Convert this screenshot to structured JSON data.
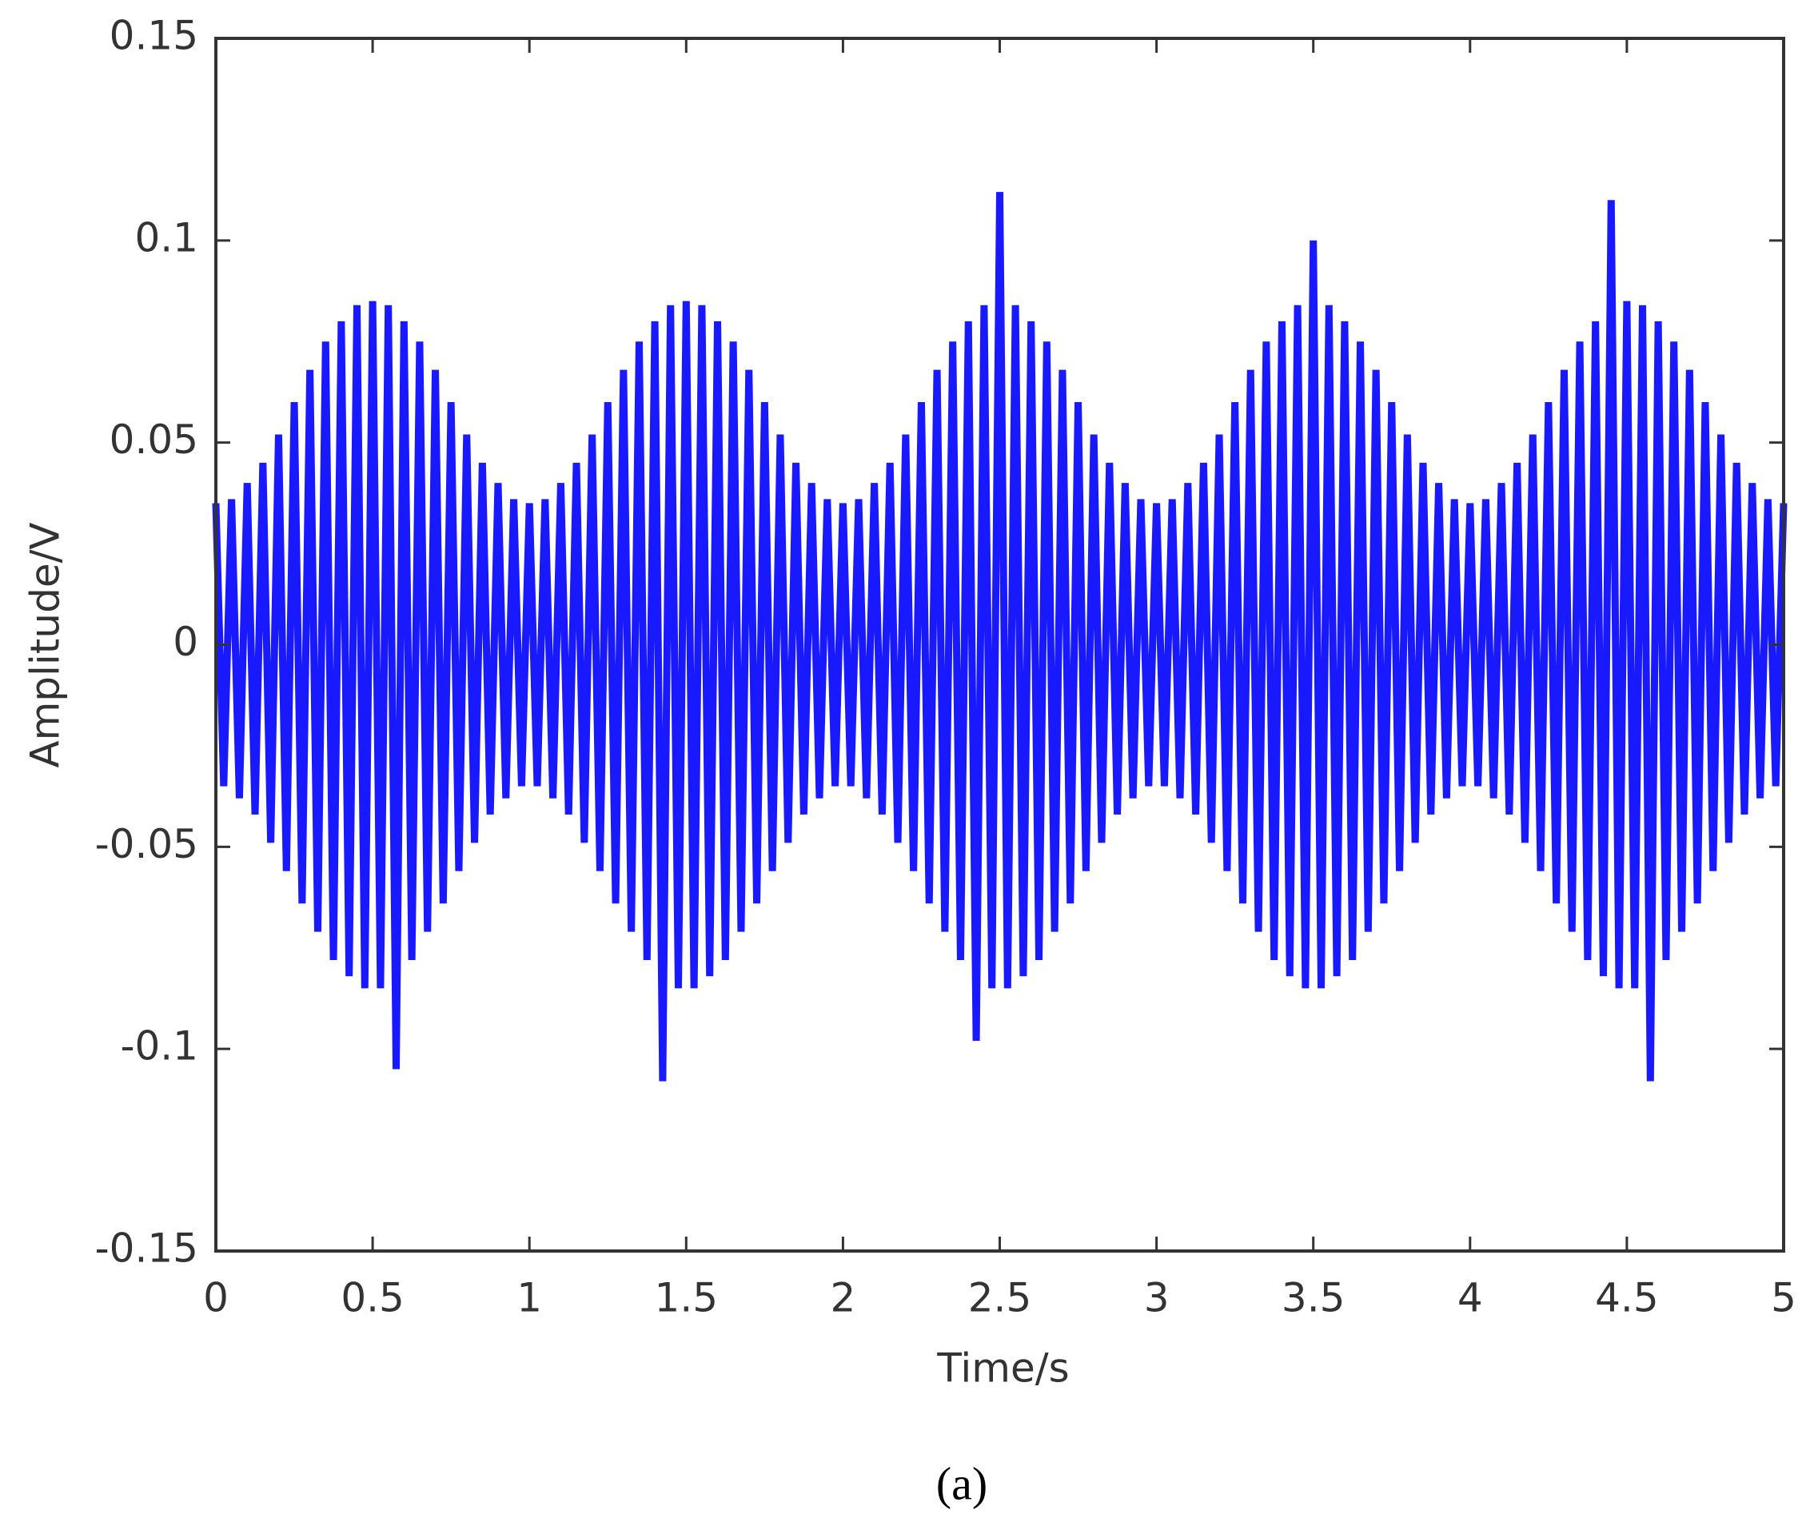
{
  "chart_data": {
    "type": "line",
    "xlabel": "Time/s",
    "ylabel": "Amplitude/V",
    "caption": "(a)",
    "xlim": [
      0,
      5
    ],
    "ylim": [
      -0.15,
      0.15
    ],
    "xticks": [
      0,
      0.5,
      1,
      1.5,
      2,
      2.5,
      3,
      3.5,
      4,
      4.5,
      5
    ],
    "yticks": [
      -0.15,
      -0.1,
      -0.05,
      0,
      0.05,
      0.1,
      0.15
    ],
    "grid": false,
    "x": [
      0,
      0.025,
      0.05,
      0.075,
      0.1,
      0.125,
      0.15,
      0.175,
      0.2,
      0.225,
      0.25,
      0.275,
      0.3,
      0.325,
      0.35,
      0.375,
      0.4,
      0.425,
      0.45,
      0.475,
      0.5,
      0.525,
      0.55,
      0.575,
      0.6,
      0.625,
      0.65,
      0.675,
      0.7,
      0.725,
      0.75,
      0.775,
      0.8,
      0.825,
      0.85,
      0.875,
      0.9,
      0.925,
      0.95,
      0.975,
      1,
      1.025,
      1.05,
      1.075,
      1.1,
      1.125,
      1.15,
      1.175,
      1.2,
      1.225,
      1.25,
      1.275,
      1.3,
      1.325,
      1.35,
      1.375,
      1.4,
      1.425,
      1.45,
      1.475,
      1.5,
      1.525,
      1.55,
      1.575,
      1.6,
      1.625,
      1.65,
      1.675,
      1.7,
      1.725,
      1.75,
      1.775,
      1.8,
      1.825,
      1.85,
      1.875,
      1.9,
      1.925,
      1.95,
      1.975,
      2,
      2.025,
      2.05,
      2.075,
      2.1,
      2.125,
      2.15,
      2.175,
      2.2,
      2.225,
      2.25,
      2.275,
      2.3,
      2.325,
      2.35,
      2.375,
      2.4,
      2.425,
      2.45,
      2.475,
      2.5,
      2.525,
      2.55,
      2.575,
      2.6,
      2.625,
      2.65,
      2.675,
      2.7,
      2.725,
      2.75,
      2.775,
      2.8,
      2.825,
      2.85,
      2.875,
      2.9,
      2.925,
      2.95,
      2.975,
      3,
      3.025,
      3.05,
      3.075,
      3.1,
      3.125,
      3.15,
      3.175,
      3.2,
      3.225,
      3.25,
      3.275,
      3.3,
      3.325,
      3.35,
      3.375,
      3.4,
      3.425,
      3.45,
      3.475,
      3.5,
      3.525,
      3.55,
      3.575,
      3.6,
      3.625,
      3.65,
      3.675,
      3.7,
      3.725,
      3.75,
      3.775,
      3.8,
      3.825,
      3.85,
      3.875,
      3.9,
      3.925,
      3.95,
      3.975,
      4,
      4.025,
      4.05,
      4.075,
      4.1,
      4.125,
      4.15,
      4.175,
      4.2,
      4.225,
      4.25,
      4.275,
      4.3,
      4.325,
      4.35,
      4.375,
      4.4,
      4.425,
      4.45,
      4.475,
      4.5,
      4.525,
      4.55,
      4.575,
      4.6,
      4.625,
      4.65,
      4.675,
      4.7,
      4.725,
      4.75,
      4.775,
      4.8,
      4.825,
      4.85,
      4.875,
      4.9,
      4.925,
      4.95,
      4.975,
      5
    ],
    "series": [
      {
        "color": "#0000ff",
        "values": [
          0.035,
          -0.035,
          0.036,
          -0.038,
          0.04,
          -0.042,
          0.045,
          -0.049,
          0.052,
          -0.056,
          0.06,
          -0.064,
          0.068,
          -0.071,
          0.075,
          -0.078,
          0.08,
          -0.082,
          0.084,
          -0.085,
          0.085,
          -0.085,
          0.084,
          -0.105,
          0.08,
          -0.078,
          0.075,
          -0.071,
          0.068,
          -0.064,
          0.06,
          -0.056,
          0.052,
          -0.049,
          0.045,
          -0.042,
          0.04,
          -0.038,
          0.036,
          -0.035,
          0.035,
          -0.035,
          0.036,
          -0.038,
          0.04,
          -0.042,
          0.045,
          -0.049,
          0.052,
          -0.056,
          0.06,
          -0.064,
          0.068,
          -0.071,
          0.075,
          -0.078,
          0.08,
          -0.108,
          0.084,
          -0.085,
          0.085,
          -0.085,
          0.084,
          -0.082,
          0.08,
          -0.078,
          0.075,
          -0.071,
          0.068,
          -0.064,
          0.06,
          -0.056,
          0.052,
          -0.049,
          0.045,
          -0.042,
          0.04,
          -0.038,
          0.036,
          -0.035,
          0.035,
          -0.035,
          0.036,
          -0.038,
          0.04,
          -0.042,
          0.045,
          -0.049,
          0.052,
          -0.056,
          0.06,
          -0.064,
          0.068,
          -0.071,
          0.075,
          -0.078,
          0.08,
          -0.098,
          0.084,
          -0.085,
          0.112,
          -0.085,
          0.084,
          -0.082,
          0.08,
          -0.078,
          0.075,
          -0.071,
          0.068,
          -0.064,
          0.06,
          -0.056,
          0.052,
          -0.049,
          0.045,
          -0.042,
          0.04,
          -0.038,
          0.036,
          -0.035,
          0.035,
          -0.035,
          0.036,
          -0.038,
          0.04,
          -0.042,
          0.045,
          -0.049,
          0.052,
          -0.056,
          0.06,
          -0.064,
          0.068,
          -0.071,
          0.075,
          -0.078,
          0.08,
          -0.082,
          0.084,
          -0.085,
          0.1,
          -0.085,
          0.084,
          -0.082,
          0.08,
          -0.078,
          0.075,
          -0.071,
          0.068,
          -0.064,
          0.06,
          -0.056,
          0.052,
          -0.049,
          0.045,
          -0.042,
          0.04,
          -0.038,
          0.036,
          -0.035,
          0.035,
          -0.035,
          0.036,
          -0.038,
          0.04,
          -0.042,
          0.045,
          -0.049,
          0.052,
          -0.056,
          0.06,
          -0.064,
          0.068,
          -0.071,
          0.075,
          -0.078,
          0.08,
          -0.082,
          0.11,
          -0.085,
          0.085,
          -0.085,
          0.084,
          -0.108,
          0.08,
          -0.078,
          0.075,
          -0.071,
          0.068,
          -0.064,
          0.06,
          -0.056,
          0.052,
          -0.049,
          0.045,
          -0.042,
          0.04,
          -0.038,
          0.036,
          -0.035,
          0.035
        ]
      }
    ]
  }
}
